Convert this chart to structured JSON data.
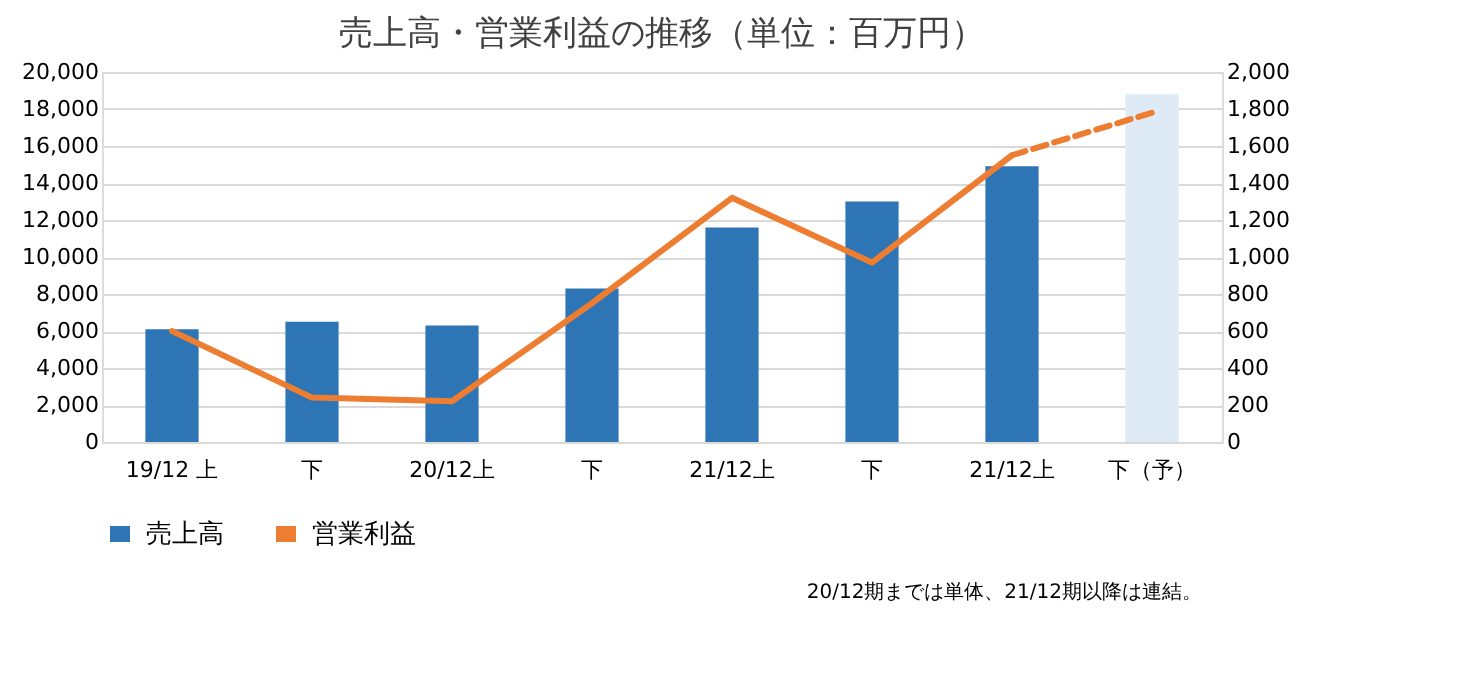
{
  "chart_data": {
    "type": "bar",
    "title": "売上高・営業利益の推移（単位：百万円）",
    "categories": [
      "19/12 上",
      "下",
      "20/12上",
      "下",
      "21/12上",
      "下",
      "21/12上",
      "下（予）"
    ],
    "series": [
      {
        "name": "売上高",
        "color": "#2e75b6",
        "colors": [
          "#2e75b6",
          "#2e75b6",
          "#2e75b6",
          "#2e75b6",
          "#2e75b6",
          "#2e75b6",
          "#2e75b6",
          "#deebf7"
        ],
        "values": [
          6100,
          6500,
          6300,
          8300,
          11600,
          13000,
          14900,
          18800
        ]
      },
      {
        "name": "営業利益",
        "type": "line",
        "axis": "y2",
        "color": "#ed7d31",
        "line_style": "solid",
        "values": [
          600,
          240,
          220,
          750,
          1320,
          970,
          1550,
          null
        ]
      },
      {
        "type": "line",
        "axis": "y2",
        "color": "#ed7d31",
        "line_style": "dashed",
        "values": [
          null,
          null,
          null,
          null,
          null,
          null,
          1550,
          1780
        ]
      }
    ],
    "ylim": [
      0,
      20000
    ],
    "yticks": [
      0,
      {
        "value": 2000,
        "label": "2,000"
      },
      {
        "value": 4000,
        "label": "4,000"
      },
      {
        "value": 6000,
        "label": "6,000"
      },
      {
        "value": 8000,
        "label": "8,000"
      },
      {
        "value": 10000,
        "label": "10,000"
      },
      {
        "value": 12000,
        "label": "12,000"
      },
      {
        "value": 14000,
        "label": "14,000"
      },
      {
        "value": 16000,
        "label": "16,000"
      },
      {
        "value": 18000,
        "label": "18,000"
      },
      {
        "value": 20000,
        "label": "20,000"
      }
    ],
    "y2lim": [
      0,
      2000
    ],
    "y2ticks": [
      0,
      200,
      400,
      600,
      800,
      {
        "value": 1000,
        "label": "1,000"
      },
      {
        "value": 1200,
        "label": "1,200"
      },
      {
        "value": 1400,
        "label": "1,400"
      },
      {
        "value": 1600,
        "label": "1,600"
      },
      {
        "value": 1800,
        "label": "1,800"
      },
      {
        "value": 2000,
        "label": "2,000"
      }
    ],
    "grid": "y",
    "legend": "bottom",
    "annotations": [
      "20/12期までは単体、21/12期以降は連結。"
    ]
  }
}
